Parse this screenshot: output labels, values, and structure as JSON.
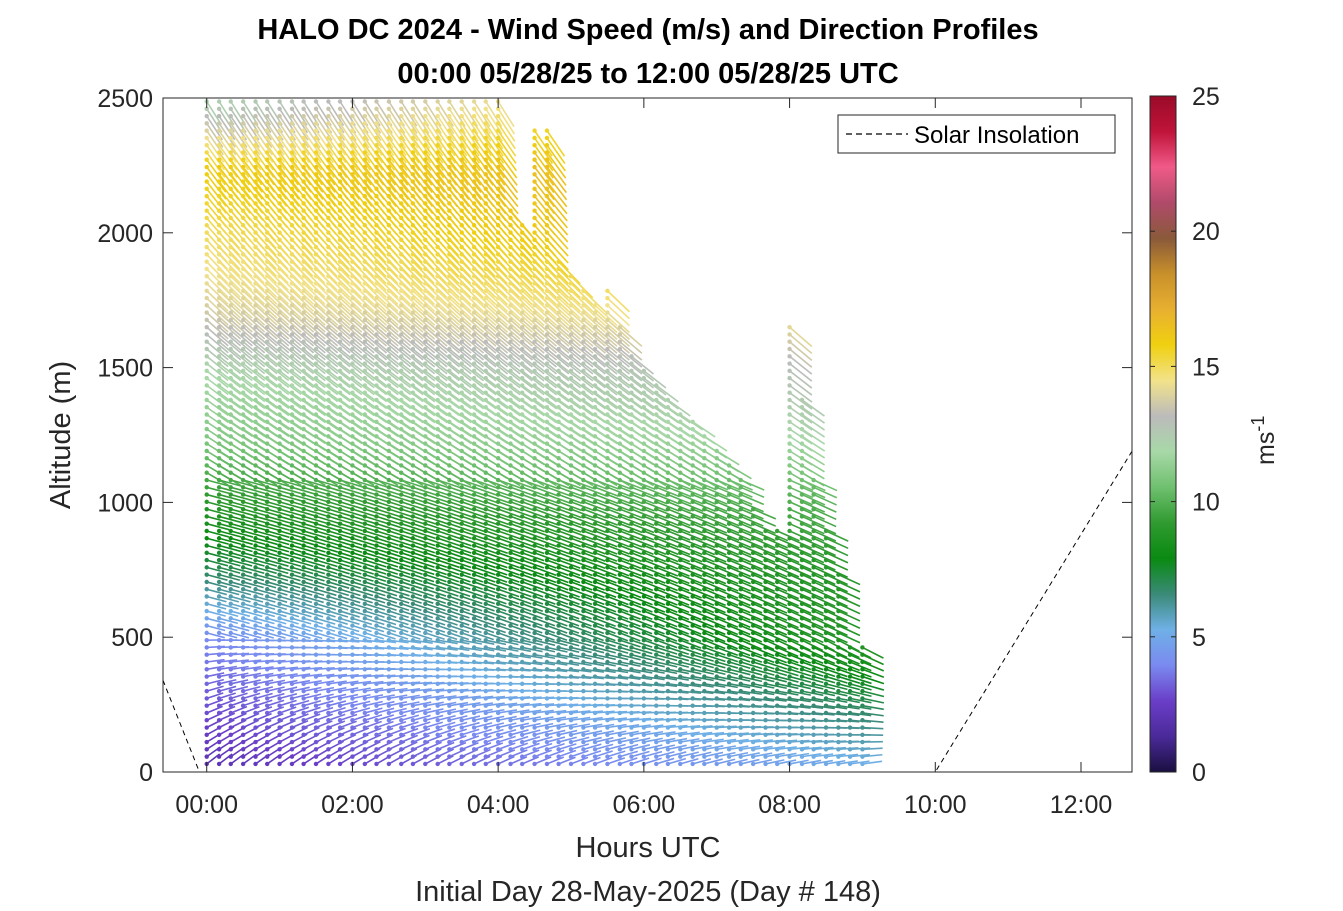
{
  "chart_data": {
    "type": "wind-barb-profile",
    "title_line1": "HALO DC 2024 - Wind Speed (m/s) and Direction Profiles",
    "title_line2": "00:00 05/28/25 to 12:00 05/28/25  UTC",
    "xlabel": "Hours UTC",
    "xlabel2": "Initial Day 28-May-2025 (Day # 148)",
    "ylabel": "Altitude (m)",
    "x_ticks": [
      "00:00",
      "02:00",
      "04:00",
      "06:00",
      "08:00",
      "10:00",
      "12:00"
    ],
    "x_tick_hours": [
      0,
      2,
      4,
      6,
      8,
      10,
      12
    ],
    "xlim_hours": [
      -0.6,
      12.7
    ],
    "y_ticks": [
      "0",
      "500",
      "1000",
      "1500",
      "2000",
      "2500"
    ],
    "ylim": [
      0,
      2500
    ],
    "colorbar": {
      "label": "ms",
      "label_exponent": "-1",
      "ticks": [
        "0",
        "5",
        "10",
        "15",
        "20",
        "25"
      ],
      "range": [
        0,
        25
      ],
      "colors": [
        "#1a0f40",
        "#4b2a9a",
        "#6a3ec8",
        "#7a8af0",
        "#6fb0e6",
        "#3a8a78",
        "#0a8a12",
        "#2f9a30",
        "#6fc06f",
        "#a8d8a8",
        "#bbbbbb",
        "#f2e28a",
        "#f0d010",
        "#e8b030",
        "#c8902a",
        "#8a5a3a",
        "#b04a6a",
        "#f05a88",
        "#c0143a",
        "#9a0a28"
      ]
    },
    "legend": {
      "entries": [
        "Solar Insolation"
      ],
      "placement": "top-right"
    },
    "solar_insolation_line": {
      "x_hours": [
        -0.6,
        -0.1,
        10.0,
        12.7
      ],
      "y_m": [
        340,
        0,
        0,
        1190
      ]
    },
    "profile_column_hours": [
      0.0,
      0.17,
      0.33,
      0.5,
      0.67,
      0.83,
      1.0,
      1.17,
      1.33,
      1.5,
      1.67,
      1.83,
      2.0,
      2.17,
      2.33,
      2.5,
      2.67,
      2.83,
      3.0,
      3.17,
      3.33,
      3.5,
      3.67,
      3.83,
      4.0,
      4.17,
      4.33,
      4.5,
      4.67,
      4.83,
      5.0,
      5.17,
      5.33,
      5.5,
      5.67,
      5.83,
      6.0,
      6.17,
      6.33,
      6.5,
      6.67,
      6.83,
      7.0,
      7.17,
      7.33,
      7.5,
      7.67,
      7.83,
      8.0,
      8.17,
      8.33,
      8.5,
      8.67,
      8.83,
      9.0
    ],
    "profile_top_m": [
      2500,
      2500,
      2500,
      2500,
      2500,
      2500,
      2500,
      2500,
      2500,
      2500,
      2500,
      2500,
      2500,
      2500,
      2500,
      2500,
      2500,
      2500,
      2500,
      2500,
      2500,
      2500,
      2500,
      2500,
      2500,
      2100,
      2050,
      2400,
      2400,
      1900,
      1850,
      1800,
      1750,
      1800,
      1650,
      1550,
      1500,
      1450,
      1400,
      1350,
      1300,
      1250,
      1200,
      1150,
      1100,
      1000,
      900,
      900,
      1650,
      1400,
      1100,
      900,
      750,
      480,
      480
    ],
    "speed_profile": {
      "altitude_m": [
        0,
        250,
        500,
        750,
        1000,
        1250,
        1500,
        1750,
        2000,
        2250,
        2500
      ],
      "speed_ms_early": [
        2,
        3,
        4,
        7,
        9,
        11,
        12,
        14,
        15,
        16,
        12
      ],
      "speed_ms_late": [
        5,
        7,
        9,
        9,
        10,
        12,
        13,
        15,
        17,
        17,
        17
      ]
    }
  }
}
